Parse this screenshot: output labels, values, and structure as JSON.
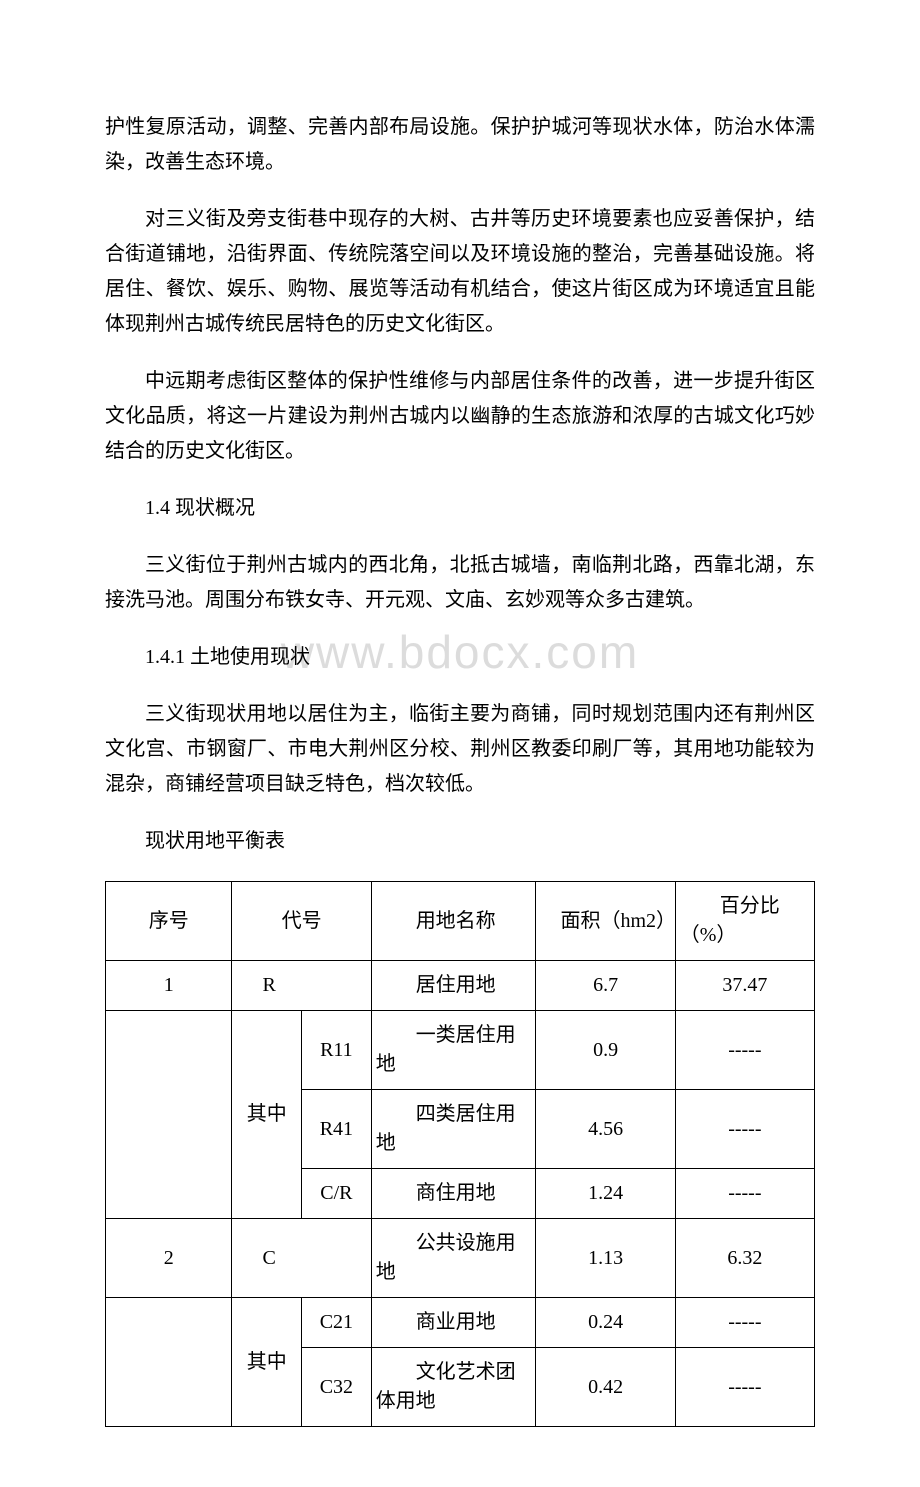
{
  "paragraphs": {
    "p1": "护性复原活动，调整、完善内部布局设施。保护护城河等现状水体，防治水体濡染，改善生态环境。",
    "p2": "对三义街及旁支街巷中现存的大树、古井等历史环境要素也应妥善保护，结合街道铺地，沿街界面、传统院落空间以及环境设施的整治，完善基础设施。将居住、餐饮、娱乐、购物、展览等活动有机结合，使这片街区成为环境适宜且能体现荆州古城传统民居特色的历史文化街区。",
    "p3": "中远期考虑街区整体的保护性维修与内部居住条件的改善，进一步提升街区文化品质，将这一片建设为荆州古城内以幽静的生态旅游和浓厚的古城文化巧妙结合的历史文化街区。",
    "h1": "1.4 现状概况",
    "p4": "三义街位于荆州古城内的西北角，北抵古城墙，南临荆北路，西靠北湖，东接洗马池。周围分布铁女寺、开元观、文庙、玄妙观等众多古建筑。",
    "h2": "1.4.1 土地使用现状",
    "p5": "三义街现状用地以居住为主，临街主要为商铺，同时规划范围内还有荆州区文化宫、市钢窗厂、市电大荆州区分校、荆州区教委印刷厂等，其用地功能较为混杂，商铺经营项目缺乏特色，档次较低。",
    "tcaption": "现状用地平衡表"
  },
  "watermark": "www.bdocx.com",
  "table": {
    "header": {
      "seq": "序号",
      "code": "代号",
      "name": "用地名称",
      "area": "面积（hm2）",
      "pct": "百分比（%）"
    },
    "group_label": "其中",
    "dash": "-----",
    "rows": [
      {
        "seq": "1",
        "code": "R",
        "name": "居住用地",
        "area": "6.7",
        "pct": "37.47"
      },
      {
        "sub": "R11",
        "name": "一类居住用地",
        "area": "0.9"
      },
      {
        "sub": "R41",
        "name": "四类居住用地",
        "area": "4.56"
      },
      {
        "sub": "C/R",
        "name": "商住用地",
        "area": "1.24"
      },
      {
        "seq": "2",
        "code": "C",
        "name": "公共设施用地",
        "area": "1.13",
        "pct": "6.32"
      },
      {
        "sub": "C21",
        "name": "商业用地",
        "area": "0.24"
      },
      {
        "sub": "C32",
        "name": "文化艺术团体用地",
        "area": "0.42"
      }
    ]
  }
}
